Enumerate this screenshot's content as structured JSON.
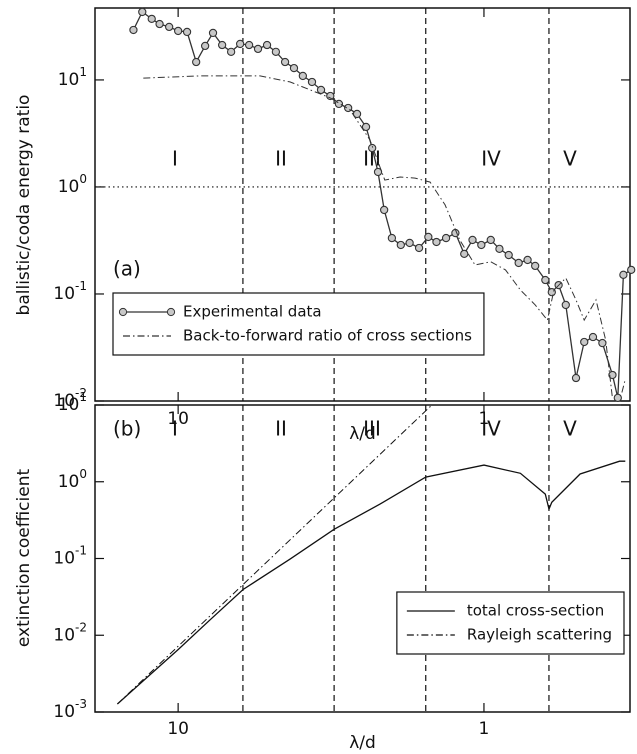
{
  "chart_data": [
    {
      "type": "line",
      "panel_label": "(a)",
      "ylabel": "ballistic/coda energy ratio",
      "xlabel": "λ/d",
      "xscale": "log",
      "yscale": "log",
      "xlim": [
        18.7,
        0.333
      ],
      "xticks": [
        10,
        1
      ],
      "ylim": [
        0.01,
        47
      ],
      "yticks": [
        {
          "value": 0.01,
          "label": "10^-2"
        },
        {
          "value": 0.1,
          "label": "10^-1"
        },
        {
          "value": 1,
          "label": "10^0"
        },
        {
          "value": 10,
          "label": "10^1"
        }
      ],
      "reference_line": 1,
      "boundaries": [
        6.14,
        3.09,
        1.55,
        0.613
      ],
      "regions": [
        "I",
        "II",
        "III",
        "IV",
        "V"
      ],
      "legend": "lower left",
      "series": [
        {
          "name": "Experimental data",
          "color": "#333333",
          "line_style": "solid",
          "marker": "circle",
          "x": [
            14.0,
            13.1,
            12.2,
            11.5,
            10.7,
            10.0,
            9.35,
            8.73,
            8.16,
            7.69,
            7.18,
            6.71,
            6.27,
            5.86,
            5.48,
            5.12,
            4.79,
            4.47,
            4.18,
            3.91,
            3.65,
            3.41,
            3.18,
            2.98,
            2.78,
            2.6,
            2.43,
            2.32,
            2.22,
            2.12,
            2.0,
            1.87,
            1.75,
            1.63,
            1.52,
            1.43,
            1.33,
            1.24,
            1.16,
            1.09,
            1.02,
            0.95,
            0.89,
            0.83,
            0.77,
            0.72,
            0.68,
            0.63,
            0.6,
            0.57,
            0.54,
            0.5,
            0.47,
            0.44,
            0.41,
            0.38,
            0.365,
            0.35,
            0.33
          ],
          "values": [
            29.3,
            43.2,
            37.2,
            33.3,
            31.3,
            28.7,
            28.1,
            14.7,
            20.8,
            27.5,
            21.2,
            18.3,
            21.7,
            21.2,
            19.5,
            21.2,
            18.3,
            14.7,
            12.9,
            10.9,
            9.57,
            8.07,
            7.08,
            5.97,
            5.47,
            4.81,
            3.64,
            2.31,
            1.38,
            0.61,
            0.333,
            0.287,
            0.3,
            0.269,
            0.341,
            0.306,
            0.333,
            0.371,
            0.237,
            0.32,
            0.287,
            0.32,
            0.264,
            0.231,
            0.195,
            0.208,
            0.183,
            0.135,
            0.104,
            0.121,
            0.079,
            0.0164,
            0.0356,
            0.0396,
            0.0348,
            0.0175,
            0.0107,
            0.151,
            0.168
          ]
        },
        {
          "name": "Back-to-forward ratio of cross sections",
          "color": "#333333",
          "line_style": "dashdot",
          "marker": "none",
          "x": [
            13.0,
            8.47,
            5.4,
            4.31,
            3.7,
            3.18,
            2.74,
            2.36,
            2.11,
            1.88,
            1.68,
            1.5,
            1.34,
            1.2,
            1.07,
            0.95,
            0.85,
            0.76,
            0.68,
            0.62,
            0.59,
            0.54,
            0.5,
            0.47,
            0.43,
            0.4,
            0.38,
            0.37,
            0.354,
            0.345
          ],
          "values": [
            10.4,
            10.9,
            10.9,
            9.58,
            8.07,
            6.79,
            5.25,
            2.75,
            1.16,
            1.24,
            1.21,
            1.11,
            0.68,
            0.32,
            0.187,
            0.2,
            0.168,
            0.109,
            0.079,
            0.057,
            0.109,
            0.141,
            0.088,
            0.057,
            0.088,
            0.037,
            0.0105,
            null,
            0.012,
            0.016
          ]
        }
      ]
    },
    {
      "type": "line",
      "panel_label": "(b)",
      "ylabel": "extinction coefficient",
      "xlabel": "λ/d",
      "xscale": "log",
      "yscale": "log",
      "xlim": [
        18.7,
        0.333
      ],
      "xticks": [
        10,
        1
      ],
      "ylim": [
        0.001,
        10
      ],
      "yticks": [
        {
          "value": 0.001,
          "label": "10^-3"
        },
        {
          "value": 0.01,
          "label": "10^-2"
        },
        {
          "value": 0.1,
          "label": "10^-1"
        },
        {
          "value": 1,
          "label": "10^0"
        },
        {
          "value": 10,
          "label": "10^1"
        }
      ],
      "boundaries": [
        6.14,
        3.09,
        1.55,
        0.613
      ],
      "regions": [
        "I",
        "II",
        "III",
        "IV",
        "V"
      ],
      "legend": "lower right",
      "series": [
        {
          "name": "total cross-section",
          "color": "#111111",
          "line_style": "solid",
          "marker": "none",
          "x": [
            15.8,
            10.0,
            7.86,
            6.13,
            4.31,
            3.09,
            2.19,
            1.55,
            1.0,
            0.76,
            0.63,
            0.613,
            0.6,
            0.485,
            0.36,
            0.345
          ],
          "values": [
            0.00127,
            0.0065,
            0.0159,
            0.0394,
            0.098,
            0.24,
            0.51,
            1.15,
            1.65,
            1.29,
            0.69,
            0.44,
            0.54,
            1.26,
            1.85,
            1.85
          ]
        },
        {
          "name": "Rayleigh scattering",
          "color": "#111111",
          "line_style": "dashdot",
          "marker": "none",
          "x": [
            15.8,
            1.48
          ],
          "values": [
            0.00127,
            10
          ]
        }
      ]
    }
  ]
}
